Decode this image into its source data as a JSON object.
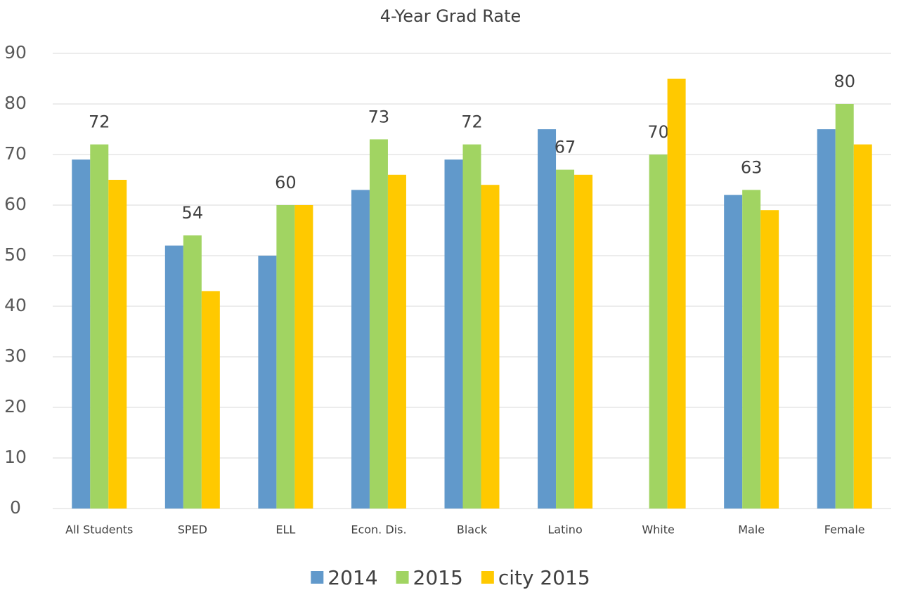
{
  "chart_data": {
    "type": "bar",
    "title": "4-Year Grad Rate",
    "categories": [
      "All Students",
      "SPED",
      "ELL",
      "Econ. Dis.",
      "Black",
      "Latino",
      "White",
      "Male",
      "Female"
    ],
    "series": [
      {
        "name": "2014",
        "color": "#6199cb",
        "values": [
          69,
          52,
          50,
          63,
          69,
          75,
          null,
          62,
          75
        ]
      },
      {
        "name": "2015",
        "color": "#a1d462",
        "values": [
          72,
          54,
          60,
          73,
          72,
          67,
          70,
          63,
          80
        ],
        "data_labels": true
      },
      {
        "name": "city 2015",
        "color": "#ffc900",
        "values": [
          65,
          43,
          60,
          66,
          64,
          66,
          85,
          59,
          72
        ]
      }
    ],
    "ylim": [
      0,
      90
    ],
    "yticks": [
      0,
      10,
      20,
      30,
      40,
      50,
      60,
      70,
      80,
      90
    ],
    "grid": true,
    "legend": "bottom"
  }
}
